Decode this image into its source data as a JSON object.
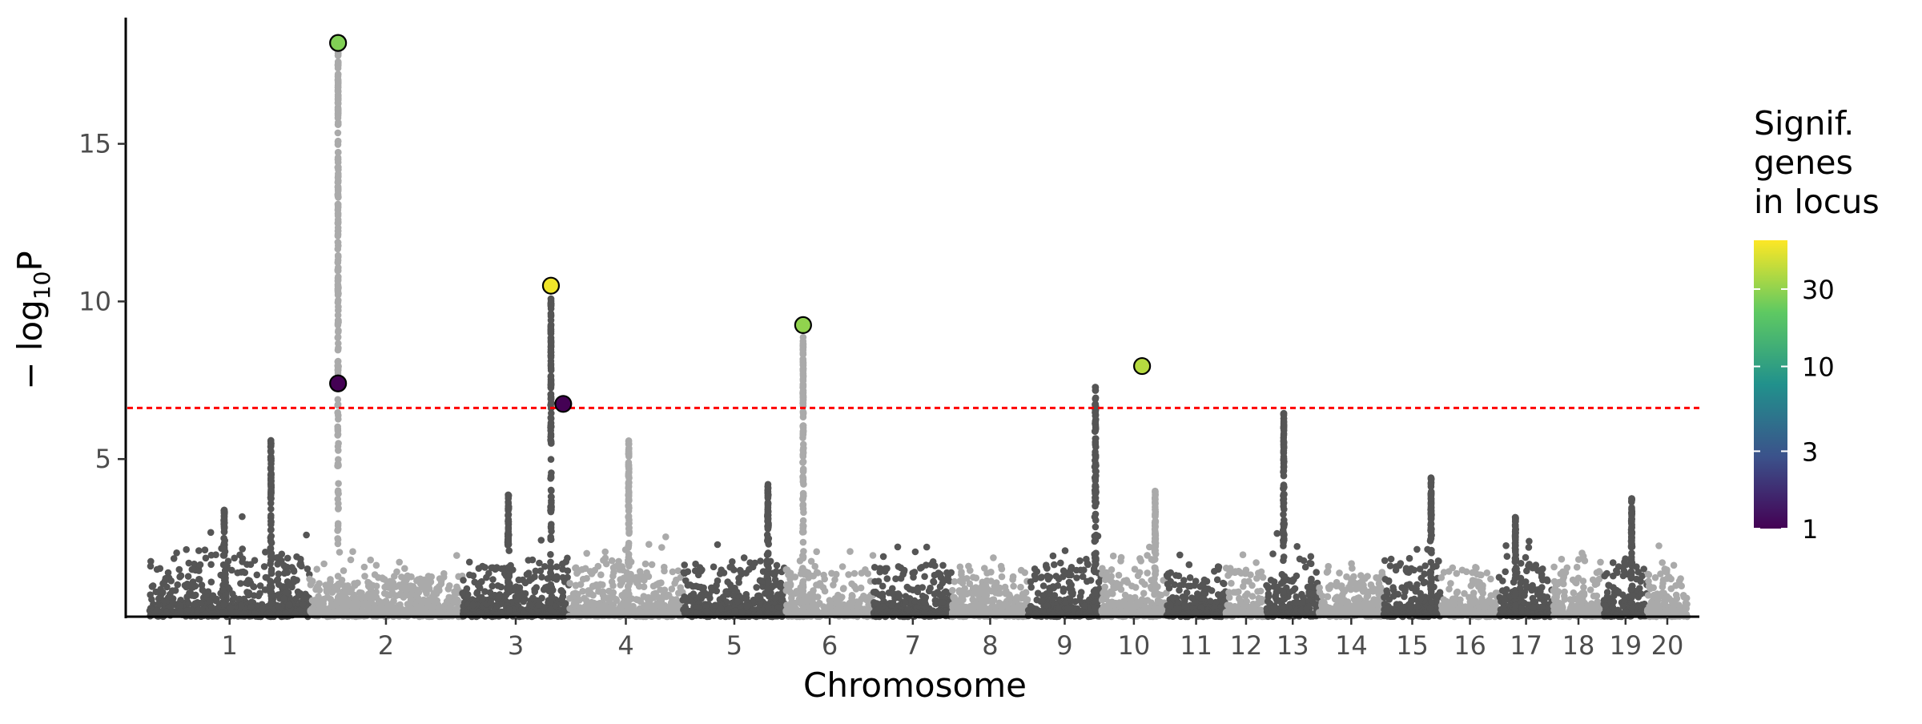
{
  "chart_data": {
    "type": "scatter",
    "subtype": "manhattan",
    "title": "",
    "xlabel": "Chromosome",
    "ylabel_main": "− log",
    "ylabel_sub": "10",
    "ylabel_end": "P",
    "ylim": [
      0,
      18.8
    ],
    "y_ticks": [
      5,
      10,
      15
    ],
    "significance_threshold": 6.62,
    "threshold_line": {
      "color": "#ff0000",
      "style": "dotted"
    },
    "chromosome_colors": [
      "#555555",
      "#aaaaaa"
    ],
    "chromosomes": [
      {
        "label": "1",
        "start": 0,
        "end": 195,
        "base": 3.0
      },
      {
        "label": "2",
        "start": 195,
        "end": 382,
        "base": 2.0
      },
      {
        "label": "3",
        "start": 382,
        "end": 512,
        "base": 2.6
      },
      {
        "label": "4",
        "start": 512,
        "end": 651,
        "base": 2.6
      },
      {
        "label": "5",
        "start": 651,
        "end": 777,
        "base": 2.6
      },
      {
        "label": "6",
        "start": 777,
        "end": 884,
        "base": 2.4
      },
      {
        "label": "7",
        "start": 884,
        "end": 980,
        "base": 2.4
      },
      {
        "label": "8",
        "start": 980,
        "end": 1073,
        "base": 2.3
      },
      {
        "label": "9",
        "start": 1073,
        "end": 1162,
        "base": 2.5
      },
      {
        "label": "10",
        "start": 1162,
        "end": 1242,
        "base": 2.6
      },
      {
        "label": "11",
        "start": 1242,
        "end": 1314,
        "base": 2.1
      },
      {
        "label": "12",
        "start": 1314,
        "end": 1364,
        "base": 2.3
      },
      {
        "label": "13",
        "start": 1364,
        "end": 1428,
        "base": 2.6
      },
      {
        "label": "14",
        "start": 1428,
        "end": 1507,
        "base": 2.3
      },
      {
        "label": "15",
        "start": 1507,
        "end": 1577,
        "base": 3.0
      },
      {
        "label": "16",
        "start": 1577,
        "end": 1648,
        "base": 2.3
      },
      {
        "label": "17",
        "start": 1648,
        "end": 1714,
        "base": 2.4
      },
      {
        "label": "18",
        "start": 1714,
        "end": 1776,
        "base": 2.4
      },
      {
        "label": "19",
        "start": 1776,
        "end": 1829,
        "base": 2.5
      },
      {
        "label": "20",
        "start": 1829,
        "end": 1878,
        "base": 2.3
      }
    ],
    "peaks": [
      {
        "pos": 91,
        "height": 3.4,
        "width": 4
      },
      {
        "pos": 148,
        "height": 5.8,
        "width": 2
      },
      {
        "pos": 230,
        "height": 18.2,
        "width": 1.2
      },
      {
        "pos": 438,
        "height": 3.9,
        "width": 3
      },
      {
        "pos": 490,
        "height": 10.4,
        "width": 1.2
      },
      {
        "pos": 585,
        "height": 5.6,
        "width": 2
      },
      {
        "pos": 755,
        "height": 4.2,
        "width": 3
      },
      {
        "pos": 798,
        "height": 8.9,
        "width": 1.5
      },
      {
        "pos": 1155,
        "height": 7.3,
        "width": 3
      },
      {
        "pos": 1228,
        "height": 4.0,
        "width": 2
      },
      {
        "pos": 1385,
        "height": 6.5,
        "width": 2
      },
      {
        "pos": 1565,
        "height": 4.5,
        "width": 2
      },
      {
        "pos": 1668,
        "height": 3.2,
        "width": 2
      },
      {
        "pos": 1810,
        "height": 3.8,
        "width": 2
      }
    ],
    "highlighted_loci": [
      {
        "pos": 230,
        "y": 18.2,
        "genes": 27
      },
      {
        "pos": 230,
        "y": 7.4,
        "genes": 1
      },
      {
        "pos": 490,
        "y": 10.5,
        "genes": 55
      },
      {
        "pos": 505,
        "y": 6.75,
        "genes": 1
      },
      {
        "pos": 798,
        "y": 9.25,
        "genes": 30
      },
      {
        "pos": 1212,
        "y": 7.95,
        "genes": 38
      }
    ],
    "legend": {
      "title_lines": [
        "Signif.",
        "genes",
        "in locus"
      ],
      "ticks": [
        1,
        3,
        10,
        30
      ],
      "range": [
        1,
        60
      ],
      "scale": "log",
      "colormap": [
        "#440154",
        "#3b528b",
        "#21918c",
        "#5ec962",
        "#fde725"
      ]
    }
  }
}
